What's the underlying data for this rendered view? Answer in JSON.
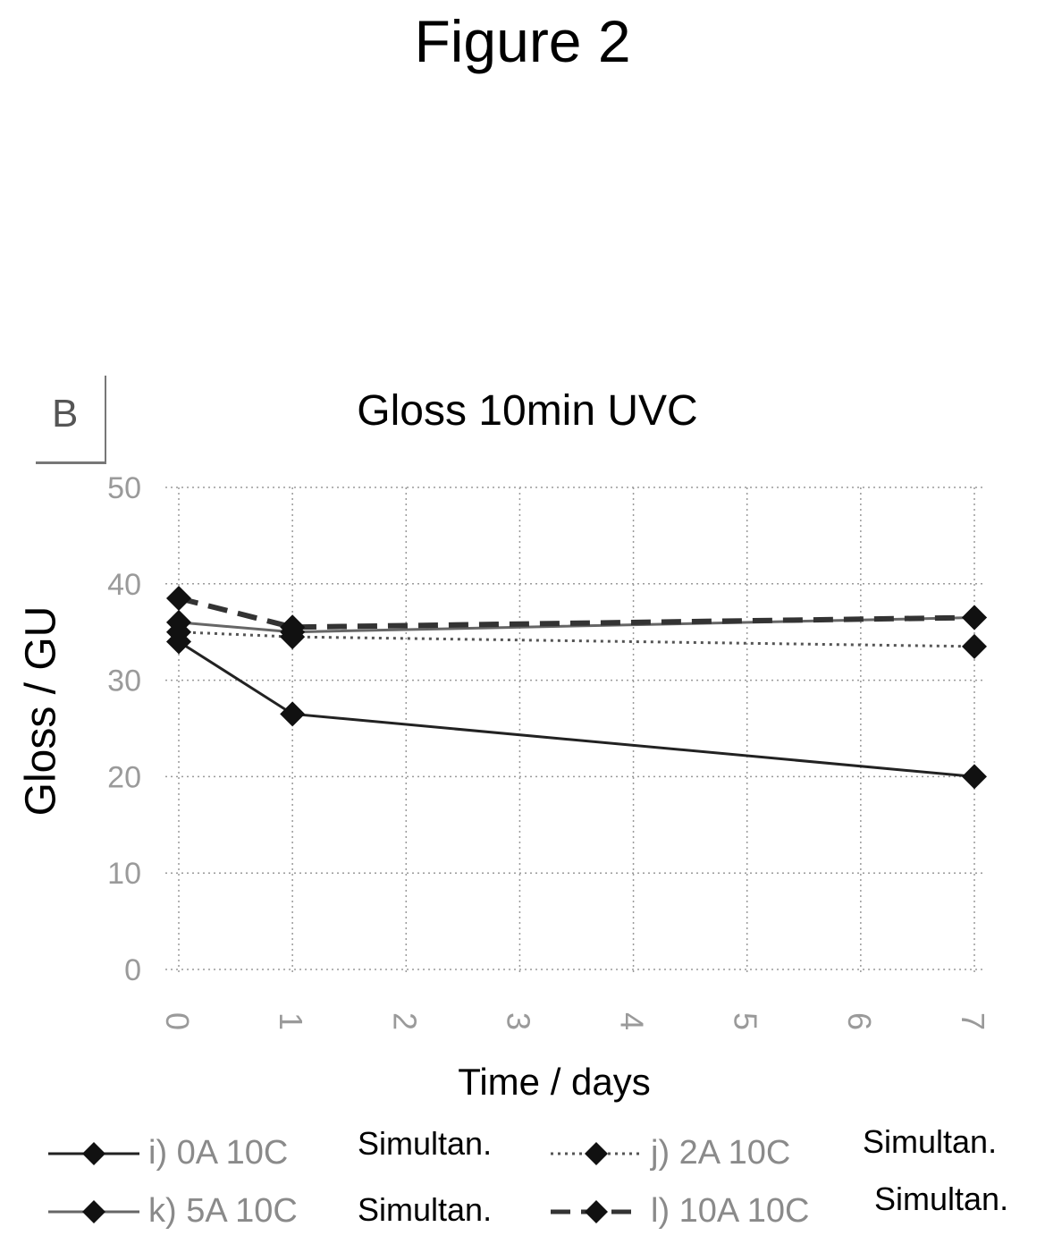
{
  "figure": {
    "title": "Figure 2",
    "panel": "B"
  },
  "chart_data": {
    "type": "line",
    "title": "Gloss 10min UVC",
    "xlabel": "Time / days",
    "ylabel": "Gloss / GU",
    "xlim": [
      0,
      7
    ],
    "ylim": [
      0,
      50
    ],
    "x_ticks": [
      "0",
      "1",
      "2",
      "3",
      "4",
      "5",
      "6",
      "7"
    ],
    "y_ticks": [
      "0",
      "10",
      "20",
      "30",
      "40",
      "50"
    ],
    "grid": true,
    "legend_position": "bottom",
    "series": [
      {
        "name": "i) 0A 10C",
        "note": "Simultan.",
        "x": [
          0,
          1,
          7
        ],
        "y": [
          34,
          26.5,
          20
        ],
        "style": "solid",
        "color": "#222222"
      },
      {
        "name": "j) 2A 10C",
        "note": "Simultan.",
        "x": [
          0,
          1,
          7
        ],
        "y": [
          35,
          34.5,
          33.5
        ],
        "style": "dotted",
        "color": "#555555"
      },
      {
        "name": "k) 5A 10C",
        "note": "Simultan.",
        "x": [
          0,
          1,
          7
        ],
        "y": [
          36,
          35,
          36.5
        ],
        "style": "solid",
        "color": "#666666"
      },
      {
        "name": "l) 10A 10C",
        "note": "Simultan.",
        "x": [
          0,
          1,
          7
        ],
        "y": [
          38.5,
          35.5,
          36.5
        ],
        "style": "dashed",
        "color": "#333333"
      }
    ]
  }
}
